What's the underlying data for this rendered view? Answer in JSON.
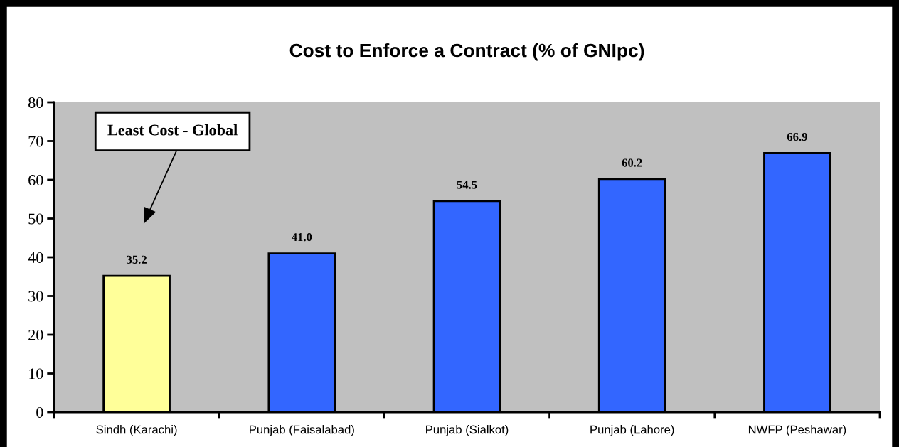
{
  "chart_data": {
    "type": "bar",
    "title": "Cost to Enforce a Contract (% of GNIpc)",
    "categories": [
      "Sindh (Karachi)",
      "Punjab (Faisalabad)",
      "Punjab (Sialkot)",
      "Punjab (Lahore)",
      "NWFP (Peshawar)"
    ],
    "values": [
      35.2,
      41.0,
      54.5,
      60.2,
      66.9
    ],
    "value_labels": [
      "35.2",
      "41.0",
      "54.5",
      "60.2",
      "66.9"
    ],
    "colors": [
      "#ffff99",
      "#3366ff",
      "#3366ff",
      "#3366ff",
      "#3366ff"
    ],
    "ylim": [
      0,
      80
    ],
    "yticks": [
      0,
      10,
      20,
      30,
      40,
      50,
      60,
      70,
      80
    ],
    "annotations": [
      "Least Cost - Global"
    ]
  }
}
